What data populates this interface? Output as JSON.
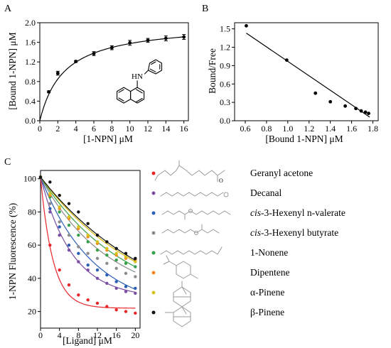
{
  "chart_data": [
    {
      "panel": "A",
      "type": "scatter",
      "xlabel": "[1-NPN] μM",
      "ylabel": "[Bound 1-NPN] μM",
      "xlim": [
        0,
        16.5
      ],
      "ylim": [
        0,
        2.0
      ],
      "xticks": [
        0,
        2,
        4,
        6,
        8,
        10,
        12,
        14,
        16
      ],
      "yticks": [
        0.0,
        0.4,
        0.8,
        1.2,
        1.6,
        2.0
      ],
      "ytick_labels": [
        "0.0",
        "0.4",
        "0.8",
        "1.2",
        "1.6",
        "2.0"
      ],
      "points": {
        "x": [
          1,
          2,
          4,
          6,
          8,
          10,
          12,
          14,
          16
        ],
        "y": [
          0.59,
          0.97,
          1.21,
          1.37,
          1.49,
          1.59,
          1.64,
          1.68,
          1.71
        ],
        "err": [
          0.02,
          0.04,
          0.02,
          0.04,
          0.04,
          0.05,
          0.04,
          0.05,
          0.05
        ]
      },
      "fit": {
        "model": "one-site binding",
        "Bmax": 2.0,
        "Kd": 2.7
      },
      "grid": false
    },
    {
      "panel": "B",
      "type": "scatter",
      "xlabel": "[Bound 1-NPN] μM",
      "ylabel": "Bound/Free",
      "xlim": [
        0.5,
        1.85
      ],
      "ylim": [
        0,
        1.6
      ],
      "xticks": [
        0.6,
        0.8,
        1.0,
        1.2,
        1.4,
        1.6,
        1.8
      ],
      "xtick_labels": [
        "0.6",
        "0.8",
        "1.0",
        "1.2",
        "1.4",
        "1.6",
        "1.8"
      ],
      "yticks": [
        0.0,
        0.3,
        0.6,
        0.9,
        1.2,
        1.5
      ],
      "ytick_labels": [
        "0.0",
        "0.3",
        "0.6",
        "0.9",
        "1.2",
        "1.5"
      ],
      "points": {
        "x": [
          0.61,
          0.99,
          1.26,
          1.4,
          1.54,
          1.64,
          1.69,
          1.73,
          1.76
        ],
        "y": [
          1.55,
          0.99,
          0.45,
          0.31,
          0.24,
          0.2,
          0.16,
          0.14,
          0.12
        ]
      },
      "fit": {
        "type": "linear",
        "x": [
          0.61,
          1.77
        ],
        "y": [
          1.43,
          0.06
        ]
      },
      "grid": false
    },
    {
      "panel": "C",
      "type": "line",
      "xlabel": "[Ligand] μM",
      "ylabel": "1-NPN Fluorescence (%)",
      "xlim": [
        0,
        21
      ],
      "ylim": [
        10,
        105
      ],
      "xticks": [
        0,
        4,
        8,
        12,
        16,
        20
      ],
      "yticks": [
        20,
        40,
        60,
        80,
        100
      ],
      "x": [
        0,
        2,
        4,
        6,
        8,
        10,
        12,
        14,
        16,
        18,
        20
      ],
      "series": [
        {
          "name": "Geranyl acetone",
          "color": "#e8262a",
          "y": [
            101,
            60,
            45,
            36,
            30,
            27,
            25,
            23,
            21,
            20,
            19
          ],
          "fit": {
            "plateau": 22,
            "k": 0.38
          }
        },
        {
          "name": "Decanal",
          "color": "#7b4ea3",
          "y": [
            101,
            80,
            66,
            57,
            50,
            45,
            40,
            37,
            34,
            32,
            31
          ],
          "fit": {
            "plateau": 28,
            "k": 0.15
          }
        },
        {
          "name": "cis-3-Hexenyl n-valerate",
          "color": "#2b5fb4",
          "y": [
            101,
            82,
            71,
            60,
            55,
            48,
            45,
            42,
            38,
            35,
            34
          ],
          "fit": {
            "plateau": 20,
            "k": 0.09
          }
        },
        {
          "name": "cis-3-Hexenyl butyrate",
          "color": "#8c8c8c",
          "y": [
            101,
            85,
            74,
            66,
            59,
            55,
            52,
            49,
            46,
            43,
            41
          ],
          "fit": {
            "plateau": 25,
            "k": 0.07
          }
        },
        {
          "name": "1-Nonene",
          "color": "#36a04a",
          "y": [
            101,
            89,
            80,
            72,
            66,
            62,
            57,
            54,
            51,
            49,
            47
          ],
          "fit": {
            "plateau": 20,
            "k": 0.055
          }
        },
        {
          "name": "Dipentene",
          "color": "#f08a1c",
          "y": [
            101,
            90,
            82,
            76,
            70,
            65,
            61,
            57,
            54,
            52,
            51
          ],
          "fit": {
            "plateau": 15,
            "k": 0.045
          }
        },
        {
          "name": "α-Pinene",
          "color": "#d6c21c",
          "y": [
            101,
            91,
            83,
            77,
            71,
            66,
            62,
            58,
            55,
            53,
            50
          ],
          "fit": {
            "plateau": 15,
            "k": 0.045
          }
        },
        {
          "name": "β-Pinene",
          "color": "#111111",
          "y": [
            101,
            98,
            90,
            85,
            80,
            73,
            66,
            62,
            58,
            55,
            52
          ],
          "fit": {
            "plateau": 10,
            "k": 0.04
          }
        }
      ],
      "legend_labels": [
        {
          "prefix": "",
          "italic": "",
          "rest": "Geranyl acetone"
        },
        {
          "prefix": "",
          "italic": "",
          "rest": "Decanal"
        },
        {
          "prefix": "",
          "italic": "cis",
          "rest": "-3-Hexenyl n-valerate"
        },
        {
          "prefix": "",
          "italic": "cis",
          "rest": "-3-Hexenyl butyrate"
        },
        {
          "prefix": "",
          "italic": "",
          "rest": "1-Nonene"
        },
        {
          "prefix": "",
          "italic": "",
          "rest": "Dipentene"
        },
        {
          "prefix": "",
          "italic": "",
          "rest": "α-Pinene"
        },
        {
          "prefix": "",
          "italic": "",
          "rest": "β-Pinene"
        }
      ],
      "legend_placement": "right, with structure drawings",
      "grid": false
    }
  ],
  "panel_labels": [
    "A",
    "B",
    "C"
  ],
  "structure_labels": {
    "npn_nh": "HN"
  }
}
